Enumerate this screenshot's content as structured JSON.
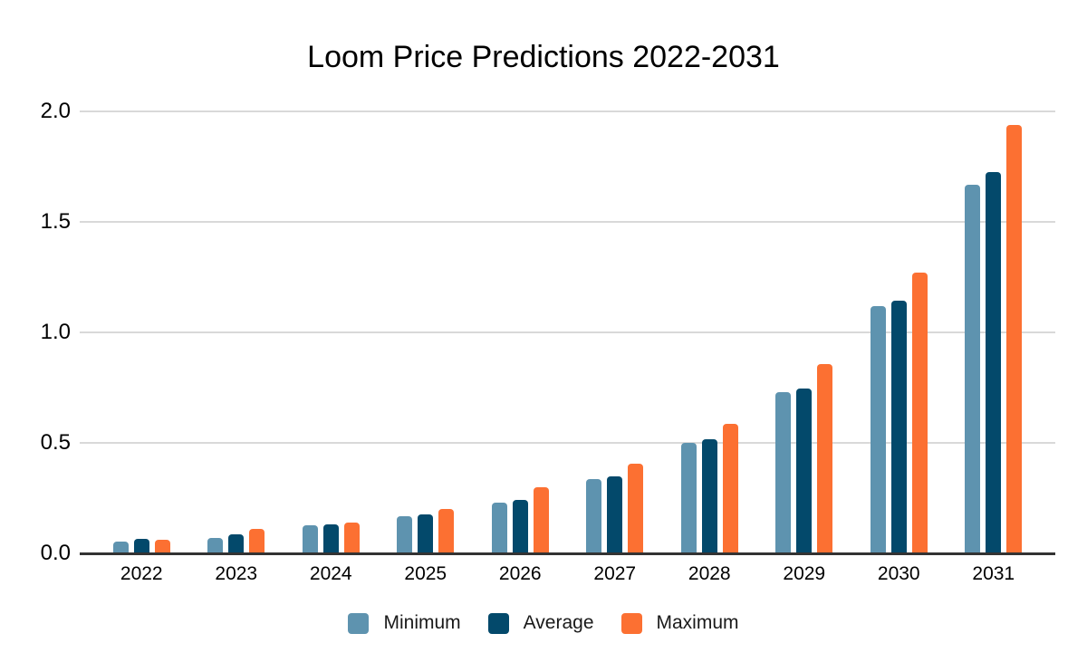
{
  "title": "Loom Price Predictions 2022-2031",
  "chart_data": {
    "type": "bar",
    "title": "Loom Price Predictions 2022-2031",
    "categories": [
      "2022",
      "2023",
      "2024",
      "2025",
      "2026",
      "2027",
      "2028",
      "2029",
      "2030",
      "2031"
    ],
    "series": [
      {
        "name": "Minimum",
        "color": "#5E93AF",
        "values": [
          0.055,
          0.07,
          0.125,
          0.17,
          0.23,
          0.335,
          0.5,
          0.73,
          1.12,
          1.67
        ]
      },
      {
        "name": "Average",
        "color": "#03496B",
        "values": [
          0.065,
          0.085,
          0.13,
          0.175,
          0.24,
          0.35,
          0.515,
          0.745,
          1.145,
          1.725
        ]
      },
      {
        "name": "Maximum",
        "color": "#FC7032",
        "values": [
          0.06,
          0.11,
          0.14,
          0.2,
          0.3,
          0.405,
          0.585,
          0.855,
          1.27,
          1.94
        ]
      }
    ],
    "xlabel": "",
    "ylabel": "",
    "ylim": [
      0,
      2
    ],
    "yticks": [
      {
        "value": 0.0,
        "label": "0.0"
      },
      {
        "value": 0.5,
        "label": "0.5"
      },
      {
        "value": 1.0,
        "label": "1.0"
      },
      {
        "value": 1.5,
        "label": "1.5"
      },
      {
        "value": 2.0,
        "label": "2.0"
      }
    ],
    "grid": true,
    "legend_position": "bottom"
  },
  "colors": {
    "background": "#ffffff",
    "gridline": "#d9d9d9",
    "axis_line": "#333333",
    "text": "#000000"
  }
}
